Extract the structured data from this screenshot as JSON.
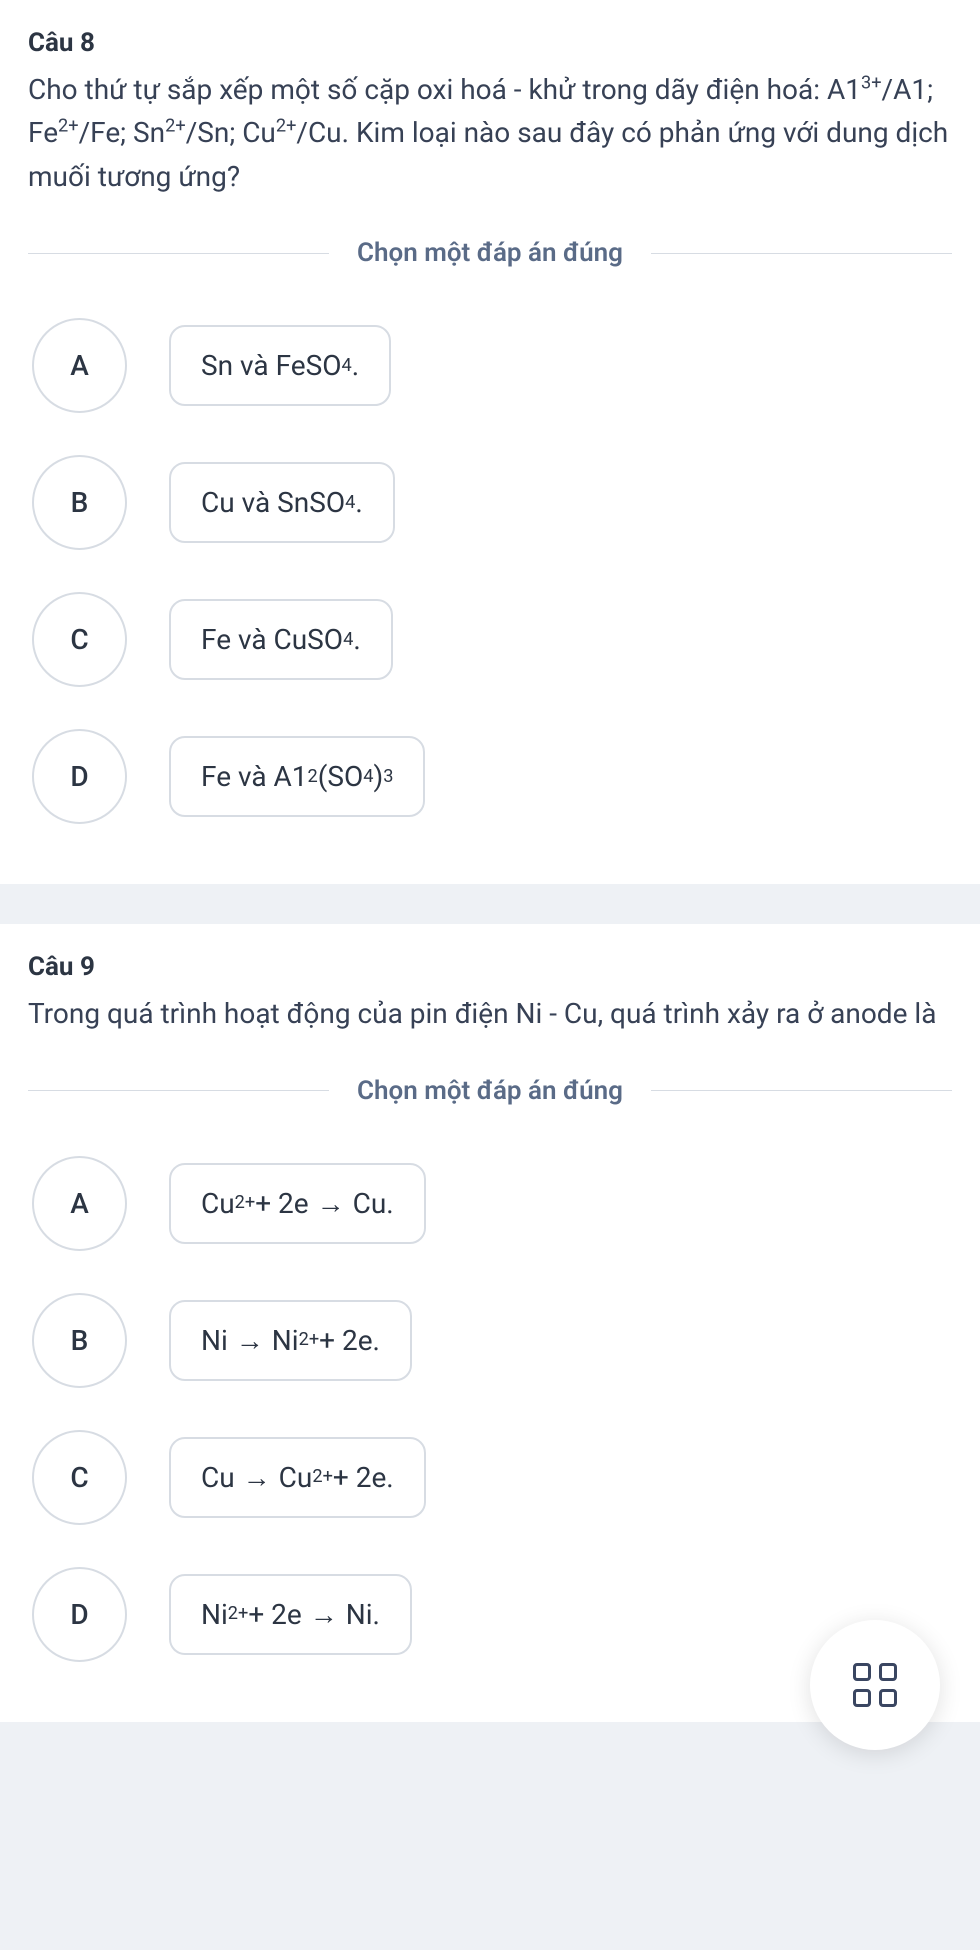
{
  "question8": {
    "number": "Câu 8",
    "text_html": "Cho thứ tự sắp xếp một số cặp oxi hoá - khử trong dãy điện hoá: A1<sup>3+</sup>/A1; Fe<sup>2+</sup>/Fe; Sn<sup>2+</sup>/Sn; Cu<sup>2+</sup>/Cu. Kim loại nào sau đây có phản ứng với dung dịch muối tương ứng?",
    "instruction": "Chọn một đáp án đúng",
    "options": [
      {
        "letter": "A",
        "html": "Sn và FeSO<sub>4</sub>."
      },
      {
        "letter": "B",
        "html": "Cu và SnSO<sub>4</sub>."
      },
      {
        "letter": "C",
        "html": "Fe và CuSO<sub>4</sub>."
      },
      {
        "letter": "D",
        "html": "Fe và A1<sub>2</sub>(SO<sub>4</sub>)<sub>3</sub>"
      }
    ]
  },
  "question9": {
    "number": "Câu 9",
    "text_html": "Trong quá trình hoạt động của pin điện Ni - Cu, quá trình xảy ra ở anode là",
    "instruction": "Chọn một đáp án đúng",
    "options": [
      {
        "letter": "A",
        "html": "Cu<sup>2+</sup> + 2e<span class=\"arrow\">→</span>Cu."
      },
      {
        "letter": "B",
        "html": "Ni<span class=\"arrow\">→</span>Ni<sup>2+</sup> + 2e."
      },
      {
        "letter": "C",
        "html": "Cu<span class=\"arrow\">→</span>Cu<sup>2+</sup> + 2e."
      },
      {
        "letter": "D",
        "html": "Ni<sup>2+</sup> + 2e<span class=\"arrow\">→</span>Ni."
      }
    ]
  },
  "colors": {
    "page_bg": "#eef1f5",
    "card_bg": "#ffffff",
    "text_primary": "#2c3543",
    "text_secondary": "#5a6b87",
    "border": "#d7dce3",
    "icon": "#3a4661"
  }
}
